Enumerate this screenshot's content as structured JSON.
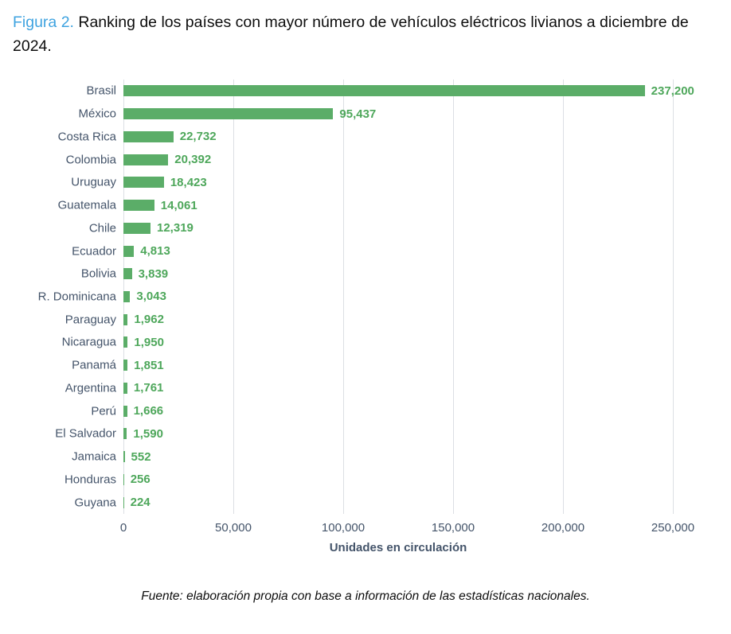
{
  "title": {
    "figure_label": "Figura 2.",
    "text": "Ranking de los países con mayor número de vehículos eléctricos livianos a diciembre de 2024."
  },
  "chart_data": {
    "type": "bar",
    "orientation": "horizontal",
    "categories": [
      "Brasil",
      "México",
      "Costa Rica",
      "Colombia",
      "Uruguay",
      "Guatemala",
      "Chile",
      "Ecuador",
      "Bolivia",
      "R. Dominicana",
      "Paraguay",
      "Nicaragua",
      "Panamá",
      "Argentina",
      "Perú",
      "El Salvador",
      "Jamaica",
      "Honduras",
      "Guyana"
    ],
    "values": [
      237200,
      95437,
      22732,
      20392,
      18423,
      14061,
      12319,
      4813,
      3839,
      3043,
      1962,
      1950,
      1851,
      1761,
      1666,
      1590,
      552,
      256,
      224
    ],
    "value_labels": [
      "237,200",
      "95,437",
      "22,732",
      "20,392",
      "18,423",
      "14,061",
      "12,319",
      "4,813",
      "3,839",
      "3,043",
      "1,962",
      "1,950",
      "1,851",
      "1,761",
      "1,666",
      "1,590",
      "552",
      "256",
      "224"
    ],
    "xlabel": "Unidades en circulación",
    "xlim": [
      0,
      250000
    ],
    "x_ticks": [
      0,
      50000,
      100000,
      150000,
      200000,
      250000
    ],
    "x_tick_labels": [
      "0",
      "50,000",
      "100,000",
      "150,000",
      "200,000",
      "250,000"
    ],
    "grid": "vertical-only",
    "legend": "none",
    "colors": {
      "bar": "#5bad68",
      "value_label": "#4ea75b",
      "axis_text": "#44546a",
      "gridline": "#dcdfe4",
      "title_accent": "#3fa3e0"
    }
  },
  "footer": {
    "source": "Fuente: elaboración propia con base a información de las estadísticas nacionales."
  }
}
